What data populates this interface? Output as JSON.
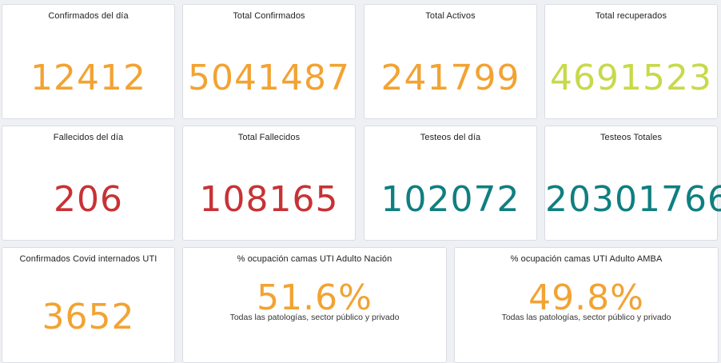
{
  "cards": [
    {
      "title": "Confirmados del día",
      "value": "12412",
      "color": "#f2a333"
    },
    {
      "title": "Total Confirmados",
      "value": "5041487",
      "color": "#f2a333"
    },
    {
      "title": "Total Activos",
      "value": "241799",
      "color": "#f2a333"
    },
    {
      "title": "Total recuperados",
      "value": "4691523",
      "color": "#c8d94a"
    },
    {
      "title": "Fallecidos del día",
      "value": "206",
      "color": "#c83235"
    },
    {
      "title": "Total Fallecidos",
      "value": "108165",
      "color": "#c83235"
    },
    {
      "title": "Testeos del día",
      "value": "102072",
      "color": "#0f7f80"
    },
    {
      "title": "Testeos Totales",
      "value": "20301766",
      "color": "#0f7f80"
    },
    {
      "title": "Confirmados Covid internados UTI",
      "value": "3652",
      "color": "#f2a333"
    },
    {
      "title": "% ocupación camas UTI Adulto Nación",
      "value": "51.6%",
      "subtitle": "Todas las patologías, sector público y privado",
      "color": "#f2a333"
    },
    {
      "title": "% ocupación camas UTI Adulto AMBA",
      "value": "49.8%",
      "subtitle": "Todas las patologías, sector público y privado",
      "color": "#f2a333"
    }
  ]
}
